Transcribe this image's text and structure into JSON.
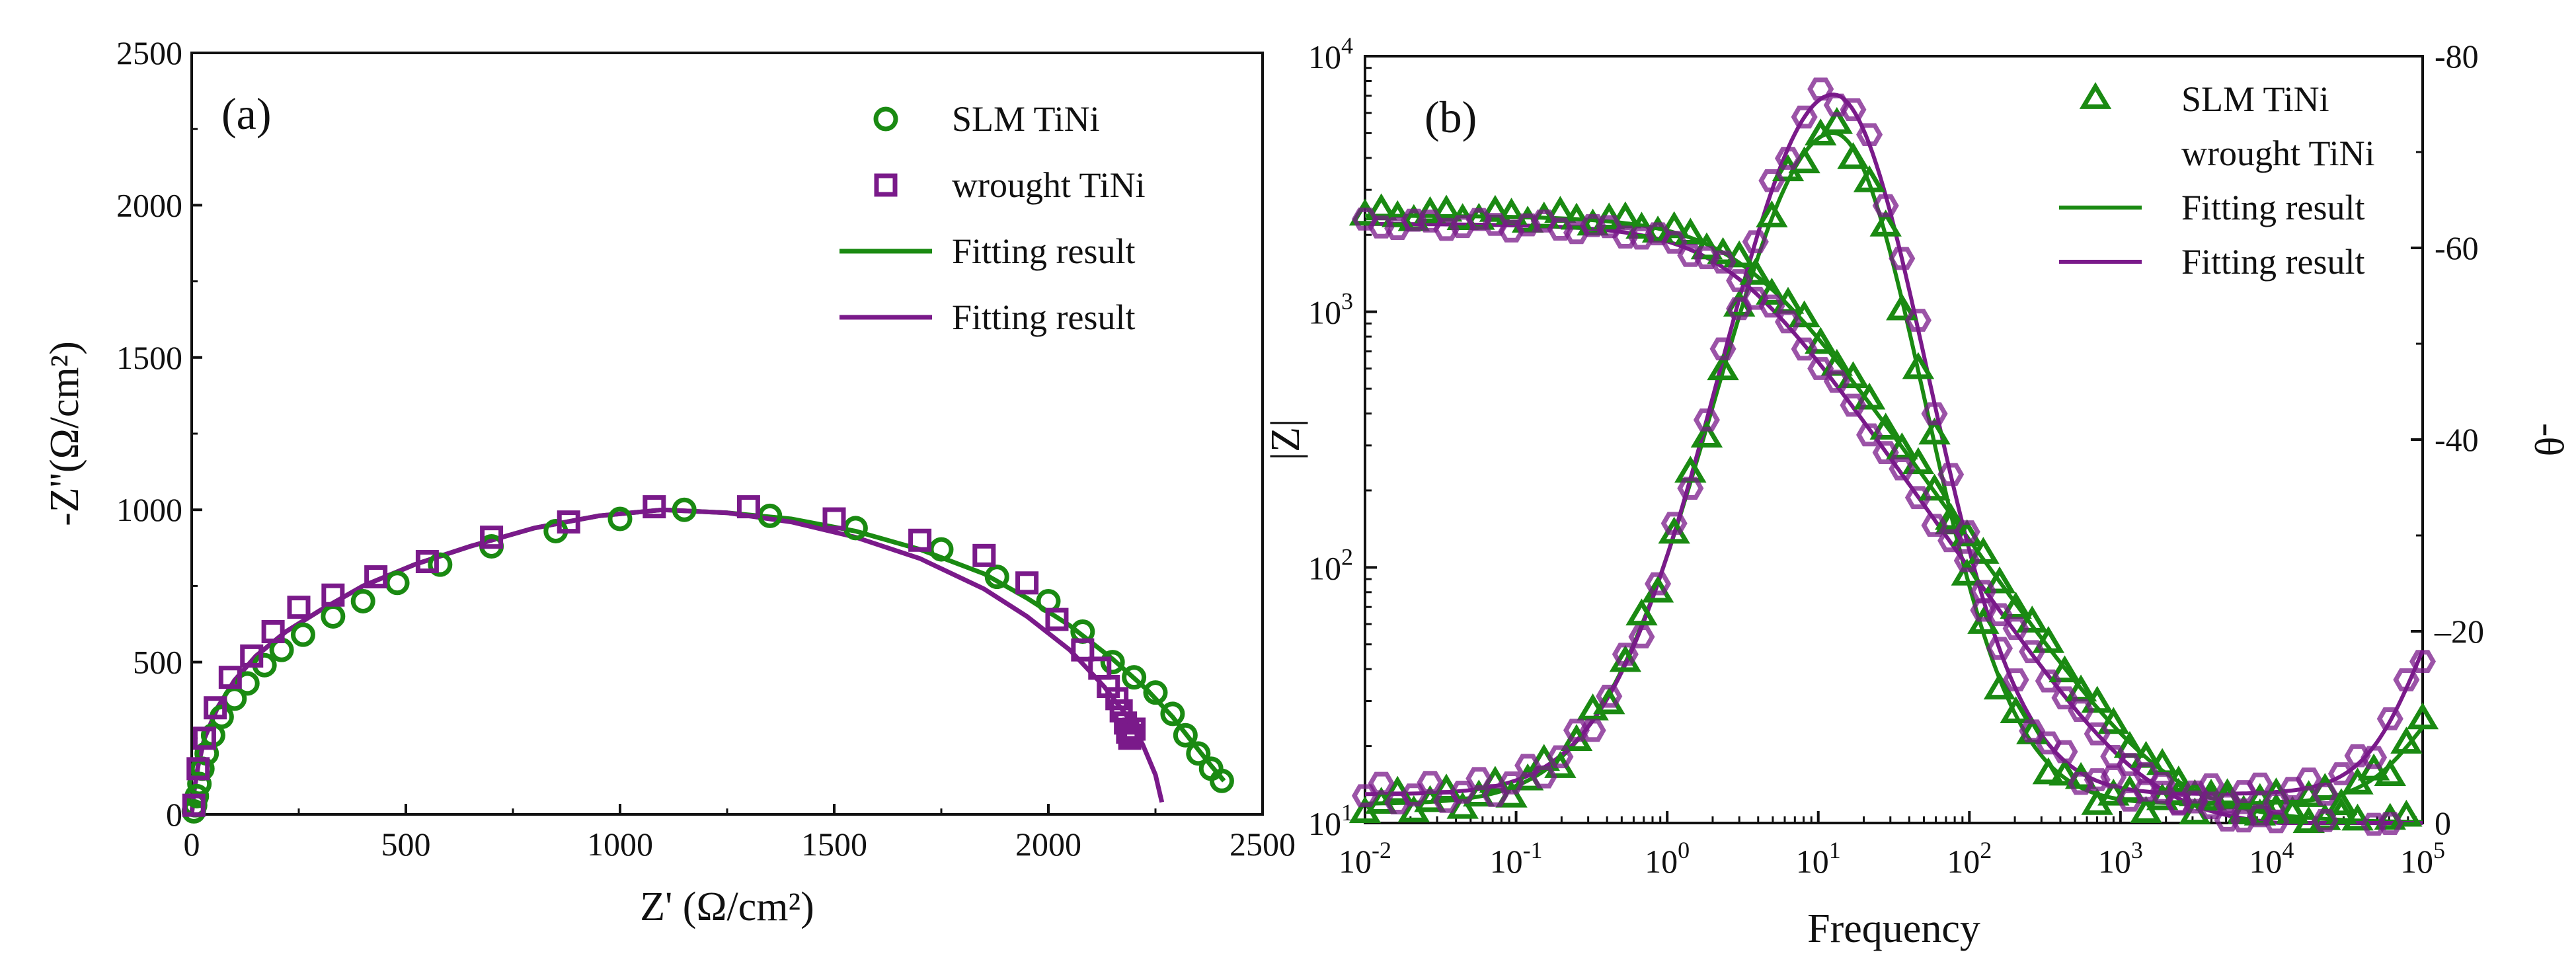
{
  "colors": {
    "slm": "#1a8a12",
    "wrought": "#7a1a8a",
    "axis": "#111111",
    "background": "#ffffff"
  },
  "chart_data": [
    {
      "id": "a",
      "type": "scatter",
      "panel_label": "(a)",
      "title": "",
      "xlabel": "Z' (Ω/cm²)",
      "ylabel": "-Z''(Ω/cm²)",
      "xlim": [
        0,
        2500
      ],
      "ylim": [
        0,
        2500
      ],
      "xticks": [
        0,
        500,
        1000,
        1500,
        2000,
        2500
      ],
      "yticks": [
        0,
        500,
        1000,
        1500,
        2000,
        2500
      ],
      "grid": false,
      "legend_position": "top-right",
      "legend": [
        "SLM TiNi",
        "wrought TiNi",
        "Fitting result",
        "Fitting result"
      ],
      "series": [
        {
          "name": "SLM TiNi",
          "kind": "markers",
          "marker": "circle",
          "color_key": "slm",
          "x": [
            5,
            8,
            12,
            18,
            25,
            35,
            50,
            70,
            100,
            130,
            170,
            210,
            260,
            330,
            400,
            480,
            580,
            700,
            850,
            1000,
            1150,
            1350,
            1550,
            1750,
            1880,
            2000,
            2080,
            2150,
            2200,
            2250,
            2290,
            2320,
            2350,
            2380,
            2405
          ],
          "y": [
            10,
            30,
            60,
            100,
            150,
            200,
            260,
            320,
            380,
            430,
            490,
            540,
            590,
            650,
            700,
            760,
            820,
            880,
            930,
            970,
            1000,
            980,
            940,
            870,
            780,
            700,
            600,
            500,
            450,
            400,
            330,
            260,
            200,
            150,
            110
          ]
        },
        {
          "name": "wrought TiNi",
          "kind": "markers",
          "marker": "square",
          "color_key": "wrought",
          "x": [
            5,
            15,
            30,
            55,
            90,
            140,
            190,
            250,
            330,
            430,
            550,
            700,
            880,
            1080,
            1300,
            1500,
            1700,
            1850,
            1950,
            2020,
            2080,
            2120,
            2140,
            2160,
            2170,
            2180,
            2185,
            2190,
            2195,
            2200
          ],
          "y": [
            30,
            150,
            250,
            350,
            450,
            520,
            600,
            680,
            720,
            780,
            830,
            910,
            960,
            1010,
            1010,
            970,
            900,
            850,
            760,
            640,
            540,
            480,
            420,
            380,
            340,
            300,
            270,
            250,
            260,
            280
          ]
        },
        {
          "name": "Fitting result",
          "kind": "line",
          "color_key": "slm",
          "x": [
            0,
            5,
            15,
            30,
            60,
            100,
            150,
            220,
            300,
            400,
            520,
            650,
            800,
            950,
            1100,
            1250,
            1400,
            1550,
            1700,
            1850,
            1950,
            2050,
            2150,
            2230,
            2290,
            2340,
            2380,
            2410
          ],
          "y": [
            0,
            70,
            160,
            250,
            350,
            440,
            520,
            600,
            670,
            750,
            820,
            880,
            940,
            980,
            1000,
            990,
            970,
            930,
            870,
            790,
            710,
            620,
            510,
            410,
            320,
            230,
            160,
            110
          ]
        },
        {
          "name": "Fitting result",
          "kind": "line",
          "color_key": "wrought",
          "x": [
            0,
            5,
            15,
            30,
            60,
            100,
            150,
            220,
            300,
            400,
            520,
            650,
            800,
            950,
            1100,
            1250,
            1400,
            1550,
            1700,
            1850,
            1950,
            2050,
            2130,
            2180,
            2220,
            2250,
            2265
          ],
          "y": [
            0,
            70,
            160,
            250,
            350,
            440,
            520,
            600,
            670,
            750,
            820,
            880,
            940,
            980,
            1000,
            990,
            960,
            910,
            840,
            740,
            650,
            540,
            420,
            330,
            230,
            130,
            40
          ]
        }
      ]
    },
    {
      "id": "b",
      "type": "line",
      "panel_label": "(b)",
      "title": "",
      "xlabel": "Frequency",
      "ylabel": "|Z|",
      "y2label": "-θ",
      "xscale": "log",
      "yscale": "log",
      "xlim": [
        0.01,
        100000
      ],
      "ylim": [
        10,
        10000
      ],
      "y2lim": [
        0,
        -80
      ],
      "xticks": [
        0.01,
        0.1,
        1,
        10,
        100,
        1000,
        10000,
        100000
      ],
      "xtick_labels": [
        {
          "base": "10",
          "exp": "-2"
        },
        {
          "base": "10",
          "exp": "-1"
        },
        {
          "base": "10",
          "exp": "0"
        },
        {
          "base": "10",
          "exp": "1"
        },
        {
          "base": "10",
          "exp": "2"
        },
        {
          "base": "10",
          "exp": "3"
        },
        {
          "base": "10",
          "exp": "4"
        },
        {
          "base": "10",
          "exp": "5"
        }
      ],
      "yticks": [
        10,
        100,
        1000,
        10000
      ],
      "ytick_labels": [
        {
          "base": "10",
          "exp": "1"
        },
        {
          "base": "10",
          "exp": "2"
        },
        {
          "base": "10",
          "exp": "3"
        },
        {
          "base": "10",
          "exp": "4"
        }
      ],
      "y2ticks": [
        0,
        -20,
        -40,
        -60,
        -80
      ],
      "y2tick_labels": [
        "0",
        "–20",
        "-40",
        "-60",
        "-80"
      ],
      "grid": false,
      "legend_position": "top-right",
      "legend": [
        "SLM TiNi",
        "wrought TiNi",
        "Fitting result",
        "Fitting result"
      ],
      "series": [
        {
          "name": "SLM TiNi |Z|",
          "kind": "markers",
          "marker": "triangle",
          "color_key": "slm",
          "axis": "left",
          "fit": "slm_z"
        },
        {
          "name": "SLM TiNi -θ",
          "kind": "markers",
          "marker": "triangle",
          "color_key": "slm",
          "axis": "right",
          "fit": "slm_p"
        },
        {
          "name": "wrought TiNi |Z|",
          "kind": "markers",
          "marker": "hexagon",
          "color_key": "wrought",
          "axis": "left",
          "fit": "wr_z"
        },
        {
          "name": "wrought TiNi -θ",
          "kind": "markers",
          "marker": "hexagon",
          "color_key": "wrought",
          "axis": "right",
          "fit": "wr_p"
        },
        {
          "name": "Fitting result |Z|",
          "kind": "line",
          "color_key": "slm",
          "axis": "left",
          "fit": "slm_z"
        },
        {
          "name": "Fitting result -θ",
          "kind": "line",
          "color_key": "slm",
          "axis": "right",
          "fit": "slm_p"
        },
        {
          "name": "Fitting result |Z|",
          "kind": "line",
          "color_key": "wrought",
          "axis": "left",
          "fit": "wr_z"
        },
        {
          "name": "Fitting result -θ",
          "kind": "line",
          "color_key": "wrought",
          "axis": "right",
          "fit": "wr_p"
        }
      ],
      "models": {
        "slm_z": {
          "Rs": 10,
          "Rp": 2370,
          "tau": 0.05,
          "alpha": 0.85
        },
        "wr_z": {
          "Rs": 9.5,
          "Rp": 2200,
          "tau": 0.06,
          "alpha": 0.86
        },
        "slm_p": {
          "base": 2,
          "peak": 70,
          "center_log": 1.1,
          "left_width": 0.78,
          "right_width": 0.6,
          "hf_rise": 8,
          "hf_center": 5
        },
        "wr_p": {
          "base": 3,
          "peak": 73,
          "center_log": 1.1,
          "left_width": 0.75,
          "right_width": 0.62,
          "hf_rise": 15,
          "hf_center": 5
        }
      }
    }
  ]
}
